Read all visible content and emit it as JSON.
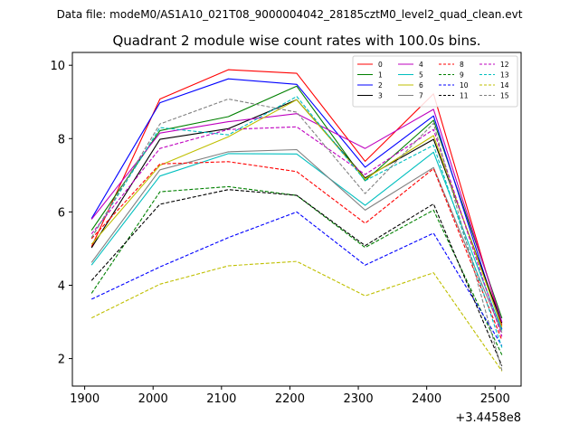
{
  "header": {
    "data_file": "Data file: modeM0/AS1A10_021T08_9000004042_28185cztM0_level2_quad_clean.evt"
  },
  "chart_data": {
    "type": "line",
    "title": "Quadrant 2 module wise count rates with 100.0s bins.",
    "xlabel": "",
    "ylabel": "",
    "x_offset_label": "+3.4458e8",
    "x": [
      1910,
      2010,
      2110,
      2210,
      2310,
      2410,
      2510
    ],
    "xlim": [
      1882,
      2538
    ],
    "ylim": [
      1.25,
      10.35
    ],
    "x_ticks": [
      1900,
      2000,
      2100,
      2200,
      2300,
      2400,
      2500
    ],
    "y_ticks": [
      2,
      4,
      6,
      8,
      10
    ],
    "grid": false,
    "legend_position": "top-right",
    "legend_columns": 4,
    "series": [
      {
        "name": "0",
        "color": "#ff0000",
        "dash": "solid",
        "values": [
          5.05,
          9.08,
          9.88,
          9.78,
          7.38,
          9.22,
          2.9
        ]
      },
      {
        "name": "1",
        "color": "#008000",
        "dash": "solid",
        "values": [
          5.5,
          8.22,
          8.6,
          9.43,
          6.85,
          8.5,
          3.1
        ]
      },
      {
        "name": "2",
        "color": "#0000ff",
        "dash": "solid",
        "values": [
          5.82,
          8.98,
          9.63,
          9.48,
          7.22,
          8.62,
          2.8
        ]
      },
      {
        "name": "3",
        "color": "#000000",
        "dash": "solid",
        "values": [
          5.02,
          7.98,
          8.27,
          9.06,
          6.93,
          7.98,
          2.97
        ]
      },
      {
        "name": "4",
        "color": "#bf00bf",
        "dash": "solid",
        "values": [
          5.8,
          8.15,
          8.46,
          8.68,
          7.73,
          8.8,
          3.0
        ]
      },
      {
        "name": "5",
        "color": "#00bfbf",
        "dash": "solid",
        "values": [
          4.55,
          6.98,
          7.59,
          7.58,
          6.18,
          7.63,
          2.77
        ]
      },
      {
        "name": "6",
        "color": "#bfbf00",
        "dash": "solid",
        "values": [
          5.12,
          7.27,
          8.05,
          9.06,
          6.9,
          8.08,
          2.85
        ]
      },
      {
        "name": "7",
        "color": "#808080",
        "dash": "solid",
        "values": [
          4.62,
          7.15,
          7.64,
          7.7,
          6.05,
          7.21,
          2.71
        ]
      },
      {
        "name": "8",
        "color": "#ff0000",
        "dash": "dashed",
        "values": [
          5.27,
          7.31,
          7.37,
          7.1,
          5.69,
          7.18,
          2.5
        ]
      },
      {
        "name": "9",
        "color": "#008000",
        "dash": "dashed",
        "values": [
          3.78,
          6.55,
          6.69,
          6.45,
          5.03,
          6.05,
          2.1
        ]
      },
      {
        "name": "10",
        "color": "#0000ff",
        "dash": "dashed",
        "values": [
          3.62,
          4.5,
          5.3,
          6.0,
          4.55,
          5.42,
          2.35
        ]
      },
      {
        "name": "11",
        "color": "#000000",
        "dash": "dashed",
        "values": [
          4.13,
          6.21,
          6.61,
          6.45,
          5.08,
          6.22,
          1.8
        ]
      },
      {
        "name": "12",
        "color": "#bf00bf",
        "dash": "dashed",
        "values": [
          5.4,
          7.73,
          8.25,
          8.32,
          7.02,
          8.25,
          2.6
        ]
      },
      {
        "name": "13",
        "color": "#00bfbf",
        "dash": "dashed",
        "values": [
          5.3,
          8.3,
          8.1,
          9.15,
          6.85,
          7.82,
          2.3
        ]
      },
      {
        "name": "14",
        "color": "#bfbf00",
        "dash": "dashed",
        "values": [
          3.11,
          4.03,
          4.53,
          4.65,
          3.71,
          4.34,
          1.66
        ]
      },
      {
        "name": "15",
        "color": "#808080",
        "dash": "dashed",
        "values": [
          5.3,
          8.4,
          9.08,
          8.72,
          6.5,
          8.42,
          1.68
        ]
      }
    ]
  }
}
